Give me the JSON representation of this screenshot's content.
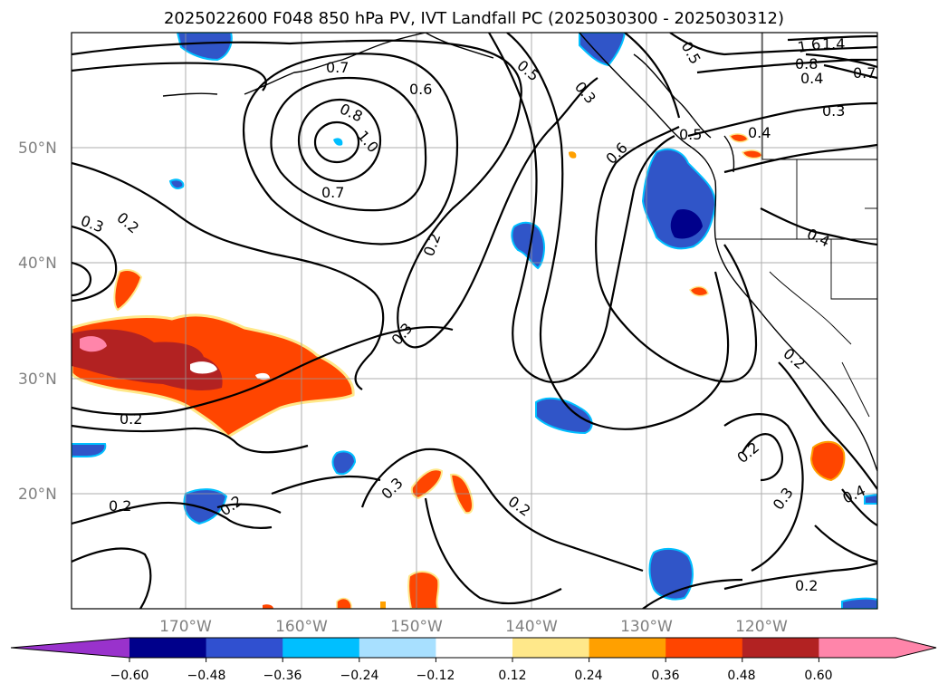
{
  "title": "2025022600 F048 850 hPa PV, IVT Landfall PC (2025030300 - 2025030312)",
  "map": {
    "lat_labels": [
      "50°N",
      "40°N",
      "30°N",
      "20°N"
    ],
    "lon_labels": [
      "170°W",
      "160°W",
      "150°W",
      "140°W",
      "130°W",
      "120°W"
    ],
    "contour_labels": [
      "0.7",
      "0.6",
      "0.8",
      "1.0",
      "0.7",
      "0.5",
      "0.3",
      "0.5",
      "1.4",
      "1.6",
      "0.8",
      "0.7",
      "0.4",
      "0.3",
      "0.5",
      "0.4",
      "0.6",
      "0.3",
      "0.2",
      "0.2",
      "0.4",
      "0.3",
      "0.2",
      "0.2",
      "0.2",
      "0.3",
      "0.2",
      "0.2",
      "0.3",
      "0.4",
      "0.2"
    ]
  },
  "colorbar": {
    "ticks": [
      "−0.60",
      "−0.48",
      "−0.36",
      "−0.24",
      "−0.12",
      "0.12",
      "0.24",
      "0.36",
      "0.48",
      "0.60"
    ],
    "colors": [
      "#9932cc",
      "#00008b",
      "#3050d0",
      "#00bfff",
      "#a8e0ff",
      "#ffffff",
      "#ffe88a",
      "#ffa000",
      "#ff4500",
      "#b22222",
      "#ff85aa",
      "#ff85aa"
    ]
  },
  "colors": {
    "blue_dark": "#00008b",
    "blue": "#3055c8",
    "cyan": "#00bfff",
    "yellow": "#ffe88a",
    "orange": "#ffa000",
    "redorange": "#ff4500",
    "firebrick": "#b22222",
    "pink": "#ff85aa"
  }
}
